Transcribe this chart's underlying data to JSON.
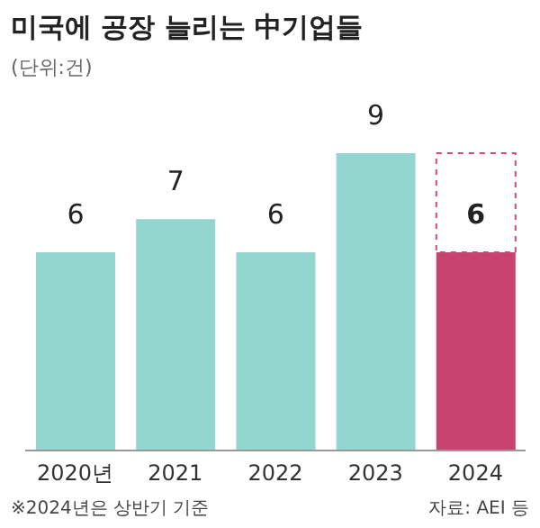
{
  "chart_data": {
    "type": "bar",
    "title": "미국에 공장 늘리는 中기업들",
    "subtitle": "(단위:건)",
    "categories": [
      "2020년",
      "2021",
      "2022",
      "2023",
      "2024"
    ],
    "stacked": true,
    "series": [
      {
        "values": [
          6,
          7,
          6,
          9,
          6
        ],
        "colors": [
          "#93d5cf",
          "#93d5cf",
          "#93d5cf",
          "#93d5cf",
          "#c8426f"
        ],
        "data_labels": true
      },
      {
        "values": [
          null,
          null,
          null,
          null,
          3
        ],
        "color": "#d24a72",
        "line_style": "dashed"
      }
    ],
    "annotations": [
      "※2024년은 상반기 기준",
      "자료: AEI 등"
    ]
  }
}
